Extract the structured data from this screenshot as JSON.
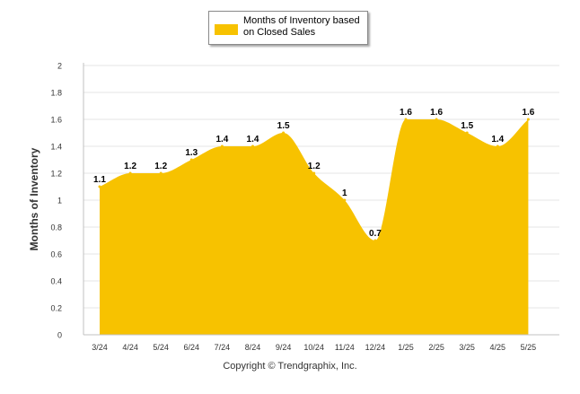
{
  "chart_data": {
    "type": "area",
    "categories": [
      "3/24",
      "4/24",
      "5/24",
      "6/24",
      "7/24",
      "8/24",
      "9/24",
      "10/24",
      "11/24",
      "12/24",
      "1/25",
      "2/25",
      "3/25",
      "4/25",
      "5/25"
    ],
    "series": [
      {
        "name": "Months of Inventory based on Closed Sales",
        "values": [
          1.1,
          1.2,
          1.2,
          1.3,
          1.4,
          1.4,
          1.5,
          1.2,
          1.0,
          0.7,
          1.6,
          1.6,
          1.5,
          1.4,
          1.6
        ],
        "labels": [
          "1.1",
          "1.2",
          "1.2",
          "1.3",
          "1.4",
          "1.4",
          "1.5",
          "1.2",
          "1",
          "0.7",
          "1.6",
          "1.6",
          "1.5",
          "1.4",
          "1.6"
        ],
        "color": "#f7c200"
      }
    ],
    "ylabel": "Months of Inventory",
    "xlabel": "",
    "ylim": [
      0,
      2
    ],
    "yticks": [
      "0",
      "0.2",
      "0.4",
      "0.6",
      "0.8",
      "1",
      "1.2",
      "1.4",
      "1.6",
      "1.8",
      "2"
    ],
    "grid": true,
    "legend_position": "top-center"
  },
  "footer": {
    "copyright": "Copyright © Trendgraphix, Inc."
  },
  "colors": {
    "area": "#f7c200",
    "grid": "#e6e6e6",
    "axis": "#c0c0c0",
    "tick_text": "#333333",
    "data_label": "#000000"
  }
}
